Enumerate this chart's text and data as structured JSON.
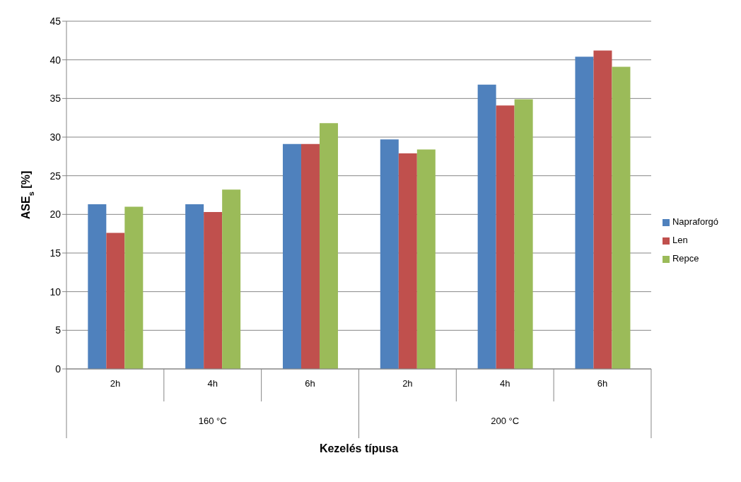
{
  "chart_data": {
    "type": "bar",
    "xlabel": "Kezelés típusa",
    "ylabel": "ASE$_{s}$ [%]",
    "categories": [
      "2h",
      "4h",
      "6h",
      "2h",
      "4h",
      "6h"
    ],
    "annotations": [
      "160 °C",
      "200 °C"
    ],
    "series": [
      {
        "name": "Napraforgó",
        "color": "#4f81bd",
        "values": [
          21.3,
          21.3,
          29.1,
          29.7,
          36.8,
          40.4
        ]
      },
      {
        "name": "Len",
        "color": "#c0504d",
        "values": [
          17.6,
          20.3,
          29.1,
          27.9,
          34.1,
          41.2
        ]
      },
      {
        "name": "Repce",
        "color": "#9bbb59",
        "values": [
          21.0,
          23.2,
          31.8,
          28.4,
          34.9,
          39.1
        ]
      }
    ],
    "ylim": [
      0,
      45
    ],
    "yticks": [
      0,
      5,
      10,
      15,
      20,
      25,
      30,
      35,
      40,
      45
    ],
    "grid": "y",
    "legend": "right"
  }
}
